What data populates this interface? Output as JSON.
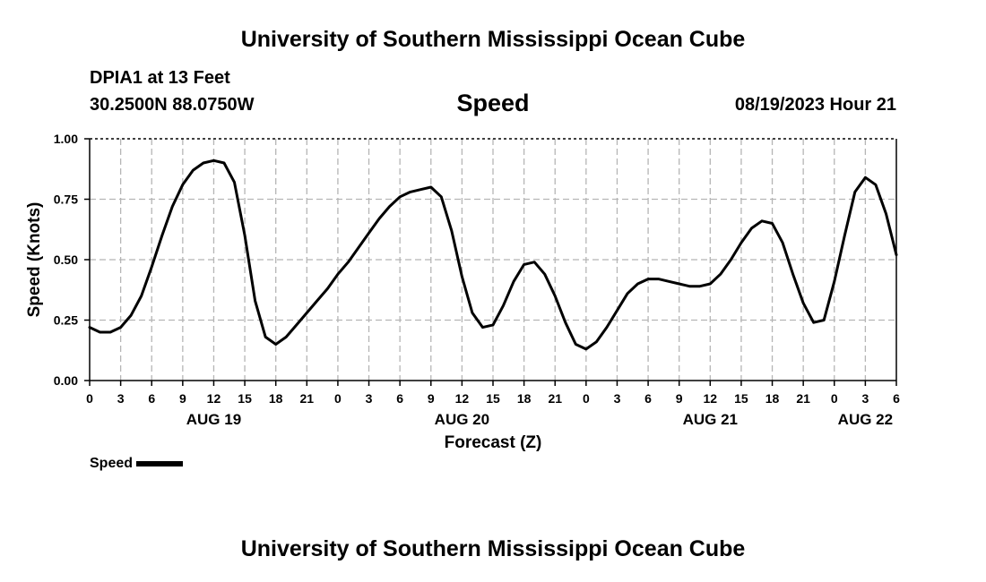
{
  "header": {
    "title": "University of Southern Mississippi Ocean Cube",
    "station": "DPIA1 at 13 Feet",
    "coords": "30.2500N  88.0750W",
    "chart_title": "Speed",
    "datetime": "08/19/2023 Hour 21"
  },
  "footer": {
    "title": "University of Southern Mississippi Ocean Cube"
  },
  "legend": {
    "label": "Speed",
    "color": "#000000"
  },
  "chart_data": {
    "type": "line",
    "title": "Speed",
    "xlabel": "Forecast (Z)",
    "ylabel": "Speed (Knots)",
    "xlim": [
      0,
      78
    ],
    "ylim": [
      0,
      1
    ],
    "grid": true,
    "y_ticks": [
      0,
      0.25,
      0.5,
      0.75,
      1
    ],
    "y_tick_labels": [
      "0.00",
      "0.25",
      "0.50",
      "0.75",
      "1.00"
    ],
    "x_ticks": [
      0,
      3,
      6,
      9,
      12,
      15,
      18,
      21,
      24,
      27,
      30,
      33,
      36,
      39,
      42,
      45,
      48,
      51,
      54,
      57,
      60,
      63,
      66,
      69,
      72,
      75,
      78
    ],
    "x_tick_labels": [
      "0",
      "3",
      "6",
      "9",
      "12",
      "15",
      "18",
      "21",
      "0",
      "3",
      "6",
      "9",
      "12",
      "15",
      "18",
      "21",
      "0",
      "3",
      "6",
      "9",
      "12",
      "15",
      "18",
      "21",
      "0",
      "3",
      "6"
    ],
    "date_labels": [
      {
        "x": 12,
        "label": "AUG 19"
      },
      {
        "x": 36,
        "label": "AUG 20"
      },
      {
        "x": 60,
        "label": "AUG 21"
      },
      {
        "x": 75,
        "label": "AUG 22"
      }
    ],
    "series": [
      {
        "name": "Speed",
        "color": "#000000",
        "x": [
          0,
          1,
          2,
          3,
          4,
          5,
          6,
          7,
          8,
          9,
          10,
          11,
          12,
          13,
          14,
          15,
          16,
          17,
          18,
          19,
          20,
          21,
          22,
          23,
          24,
          25,
          26,
          27,
          28,
          29,
          30,
          31,
          32,
          33,
          34,
          35,
          36,
          37,
          38,
          39,
          40,
          41,
          42,
          43,
          44,
          45,
          46,
          47,
          48,
          49,
          50,
          51,
          52,
          53,
          54,
          55,
          56,
          57,
          58,
          59,
          60,
          61,
          62,
          63,
          64,
          65,
          66,
          67,
          68,
          69,
          70,
          71,
          72,
          73,
          74,
          75,
          76,
          77,
          78
        ],
        "values": [
          0.22,
          0.2,
          0.2,
          0.22,
          0.27,
          0.35,
          0.47,
          0.6,
          0.72,
          0.81,
          0.87,
          0.9,
          0.91,
          0.9,
          0.82,
          0.6,
          0.33,
          0.18,
          0.15,
          0.18,
          0.23,
          0.28,
          0.33,
          0.38,
          0.44,
          0.49,
          0.55,
          0.61,
          0.67,
          0.72,
          0.76,
          0.78,
          0.79,
          0.8,
          0.76,
          0.62,
          0.43,
          0.28,
          0.22,
          0.23,
          0.31,
          0.41,
          0.48,
          0.49,
          0.44,
          0.35,
          0.24,
          0.15,
          0.13,
          0.16,
          0.22,
          0.29,
          0.36,
          0.4,
          0.42,
          0.42,
          0.41,
          0.4,
          0.39,
          0.39,
          0.4,
          0.44,
          0.5,
          0.57,
          0.63,
          0.66,
          0.65,
          0.57,
          0.44,
          0.32,
          0.24,
          0.25,
          0.41,
          0.6,
          0.78,
          0.84,
          0.81,
          0.69,
          0.52
        ]
      }
    ]
  }
}
